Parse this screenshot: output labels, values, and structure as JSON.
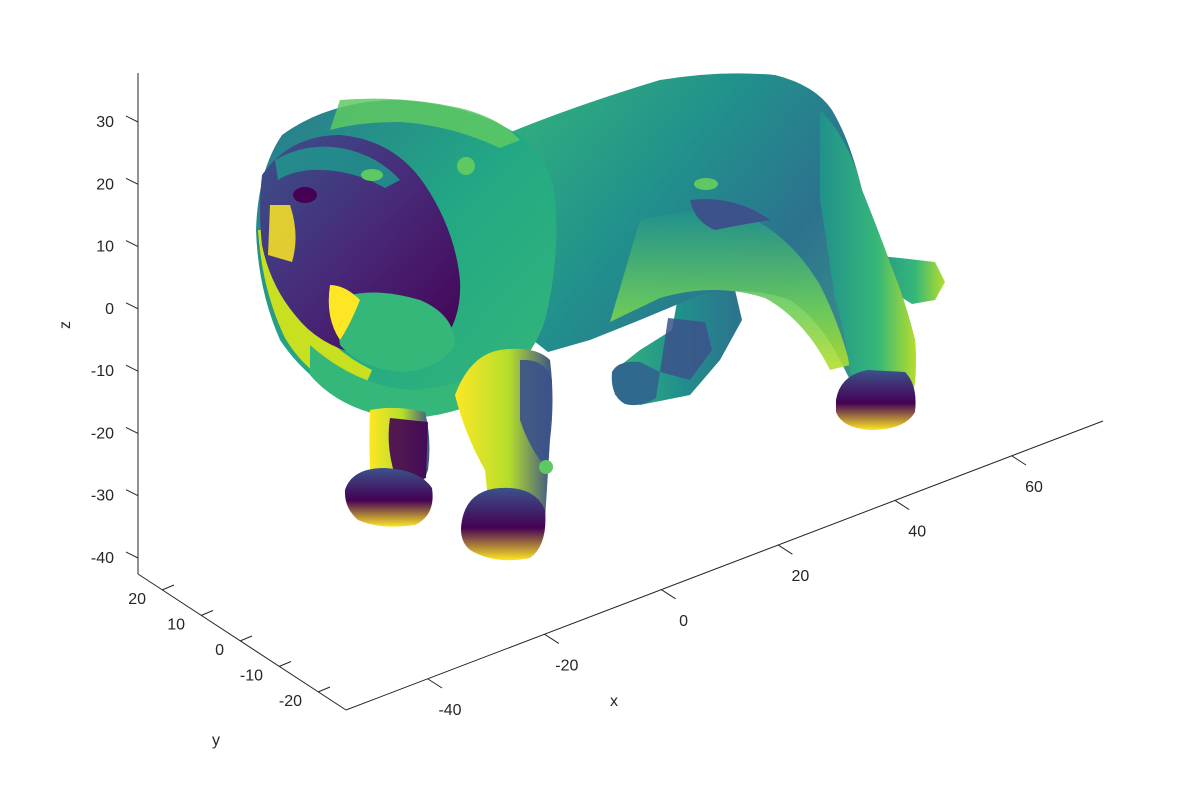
{
  "chart_data": {
    "type": "scatter3d",
    "title": "",
    "xlabel": "x",
    "ylabel": "y",
    "zlabel": "z",
    "xticks": [
      -40,
      -20,
      0,
      20,
      40,
      60
    ],
    "yticks": [
      -20,
      -10,
      0,
      10,
      20
    ],
    "zticks": [
      -40,
      -30,
      -20,
      -10,
      0,
      10,
      20,
      30
    ],
    "xlim": [
      -50,
      72
    ],
    "ylim": [
      -25,
      22
    ],
    "zlim": [
      -43,
      38
    ],
    "grid": false,
    "colormap": "viridis",
    "colormap_colors": [
      "#440154",
      "#3b528b",
      "#21918c",
      "#5ec962",
      "#fde725"
    ],
    "subject": "3D point cloud surface of a lion, colored by depth"
  }
}
